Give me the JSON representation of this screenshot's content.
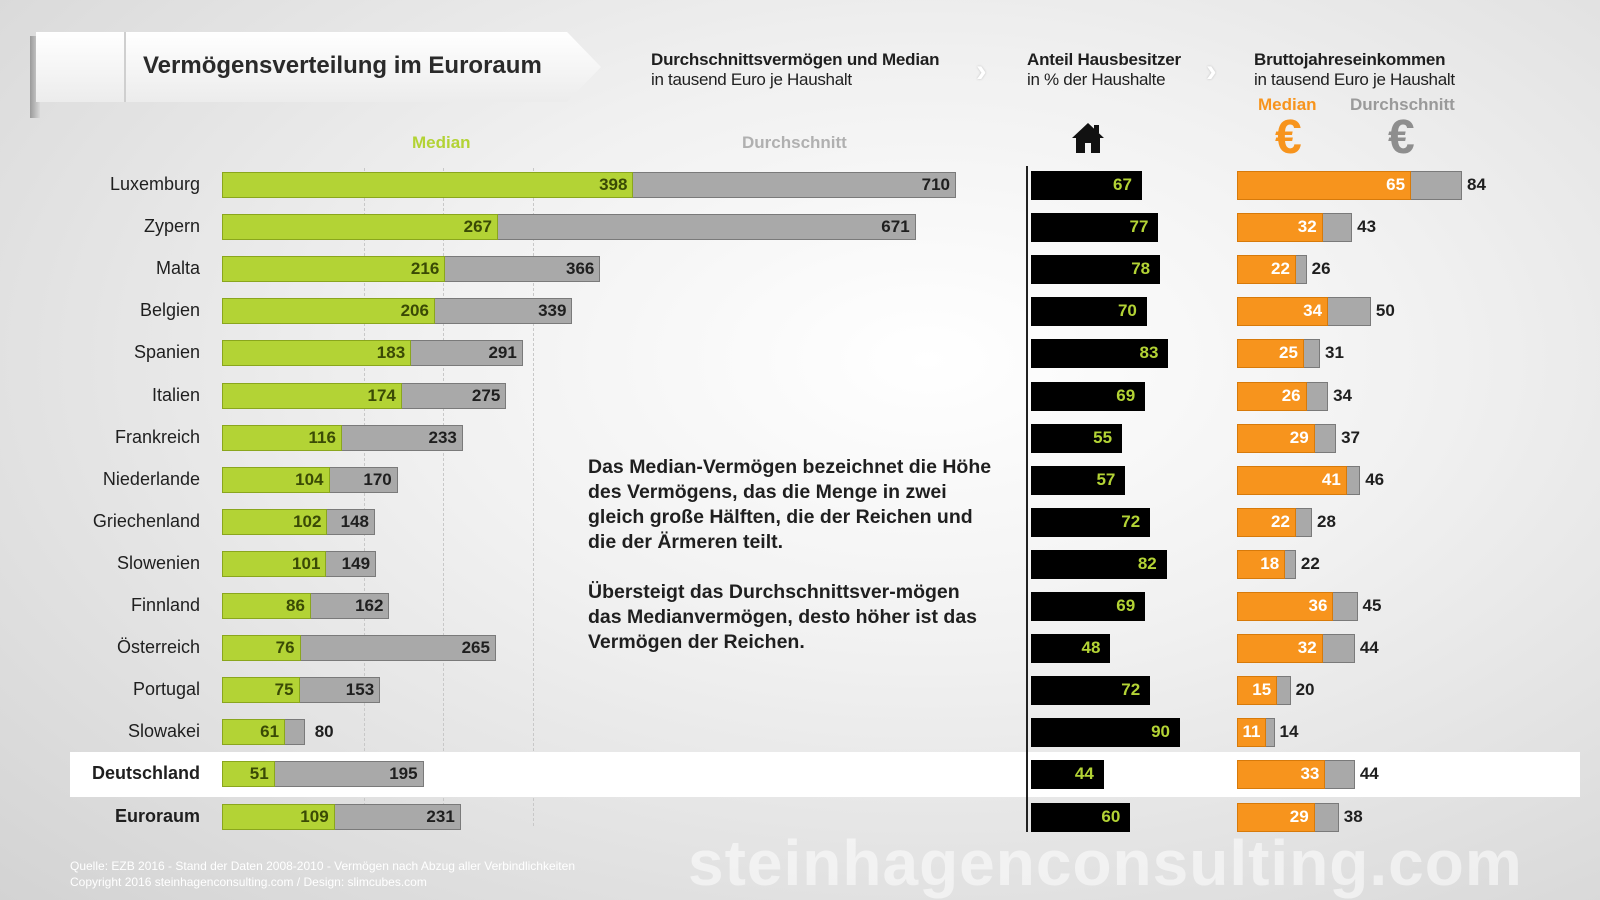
{
  "title": "Vermögensverteilung im Euroraum",
  "headers": {
    "wealth_title": "Durchschnittsvermögen und Median",
    "wealth_sub": "in tausend Euro je Haushalt",
    "own_title": "Anteil Hausbesitzer",
    "own_sub": "in % der Haushalte",
    "inc_title": "Bruttojahreseinkommen",
    "inc_sub": "in tausend Euro je Haushalt",
    "inc_median": "Median",
    "inc_avg": "Durchschnitt"
  },
  "legend": {
    "median": "Median",
    "average": "Durchschnitt"
  },
  "icons": {
    "house": "house-icon",
    "euro": "euro-icon"
  },
  "colors": {
    "median": "#b3d335",
    "average": "#a9a9a9",
    "ownership": "#000000",
    "income_median": "#f7941d"
  },
  "note": {
    "p1": "Das Median-Vermögen bezeichnet die Höhe des Vermögens, das die Menge in zwei gleich große Hälften, die der Reichen und die der Ärmeren teilt.",
    "p2": "Übersteigt das Durchschnittsver-mögen das Medianvermögen, desto höher ist das Vermögen der Reichen."
  },
  "source_line1": "Quelle: EZB 2016 - Stand der Daten 2008-2010 - Vermögen nach Abzug aller Verbindlichkeiten",
  "source_line2": "Copyright 2016 steinhagenconsulting.com / Design: slimcubes.com",
  "watermark": "steinhagenconsulting.com",
  "chart_data": {
    "type": "bar",
    "categories": [
      "Luxemburg",
      "Zypern",
      "Malta",
      "Belgien",
      "Spanien",
      "Italien",
      "Frankreich",
      "Niederlande",
      "Griechenland",
      "Slowenien",
      "Finnland",
      "Österreich",
      "Portugal",
      "Slowakei",
      "Deutschland",
      "Euroraum"
    ],
    "highlighted": "Deutschland",
    "wealth_median": [
      398,
      267,
      216,
      206,
      183,
      174,
      116,
      104,
      102,
      101,
      86,
      76,
      75,
      61,
      51,
      109
    ],
    "wealth_average": [
      710,
      671,
      366,
      339,
      291,
      275,
      233,
      170,
      148,
      149,
      162,
      265,
      153,
      80,
      195,
      231
    ],
    "home_ownership_pct": [
      67,
      77,
      78,
      70,
      83,
      69,
      55,
      57,
      72,
      82,
      69,
      48,
      72,
      90,
      44,
      60
    ],
    "income_median": [
      65,
      32,
      22,
      34,
      25,
      26,
      29,
      41,
      22,
      18,
      36,
      32,
      15,
      11,
      33,
      29
    ],
    "income_average": [
      84,
      43,
      26,
      50,
      31,
      34,
      37,
      46,
      28,
      22,
      45,
      44,
      20,
      14,
      44,
      38
    ]
  }
}
